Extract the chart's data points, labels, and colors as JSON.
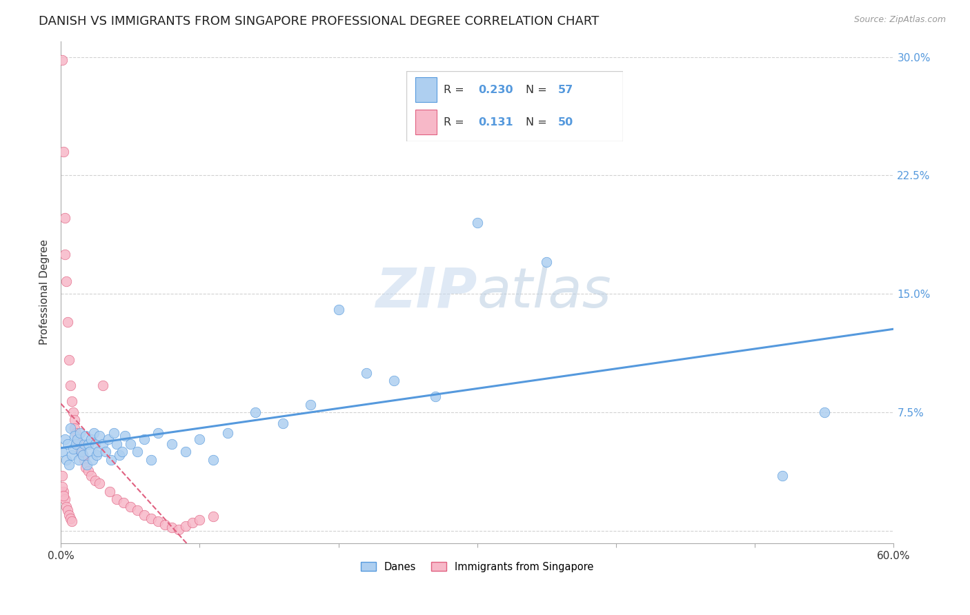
{
  "title": "DANISH VS IMMIGRANTS FROM SINGAPORE PROFESSIONAL DEGREE CORRELATION CHART",
  "source": "Source: ZipAtlas.com",
  "ylabel": "Professional Degree",
  "x_min": 0.0,
  "x_max": 0.6,
  "y_min": -0.008,
  "y_max": 0.31,
  "x_ticks": [
    0.0,
    0.1,
    0.2,
    0.3,
    0.4,
    0.5,
    0.6
  ],
  "x_tick_labels": [
    "0.0%",
    "",
    "",
    "",
    "",
    "",
    "60.0%"
  ],
  "y_ticks": [
    0.0,
    0.075,
    0.15,
    0.225,
    0.3
  ],
  "y_tick_labels_right": [
    "",
    "7.5%",
    "15.0%",
    "22.5%",
    "30.0%"
  ],
  "danes_color": "#aecff0",
  "danes_color_dark": "#5599dd",
  "singapore_color": "#f7b8c8",
  "singapore_color_dark": "#e06080",
  "danes_R": "0.230",
  "danes_N": "57",
  "singapore_R": "0.131",
  "singapore_N": "50",
  "danes_x": [
    0.001,
    0.003,
    0.004,
    0.005,
    0.006,
    0.007,
    0.008,
    0.009,
    0.01,
    0.011,
    0.012,
    0.013,
    0.014,
    0.015,
    0.016,
    0.017,
    0.018,
    0.019,
    0.02,
    0.021,
    0.022,
    0.023,
    0.024,
    0.025,
    0.026,
    0.027,
    0.028,
    0.03,
    0.032,
    0.034,
    0.036,
    0.038,
    0.04,
    0.042,
    0.044,
    0.046,
    0.05,
    0.055,
    0.06,
    0.065,
    0.07,
    0.08,
    0.09,
    0.1,
    0.11,
    0.12,
    0.14,
    0.16,
    0.18,
    0.2,
    0.22,
    0.24,
    0.27,
    0.3,
    0.35,
    0.52,
    0.55
  ],
  "danes_y": [
    0.05,
    0.058,
    0.045,
    0.055,
    0.042,
    0.065,
    0.048,
    0.052,
    0.06,
    0.055,
    0.058,
    0.045,
    0.062,
    0.05,
    0.048,
    0.055,
    0.06,
    0.042,
    0.055,
    0.05,
    0.058,
    0.045,
    0.062,
    0.055,
    0.048,
    0.05,
    0.06,
    0.055,
    0.05,
    0.058,
    0.045,
    0.062,
    0.055,
    0.048,
    0.05,
    0.06,
    0.055,
    0.05,
    0.058,
    0.045,
    0.062,
    0.055,
    0.05,
    0.058,
    0.045,
    0.062,
    0.075,
    0.068,
    0.08,
    0.14,
    0.1,
    0.095,
    0.085,
    0.195,
    0.17,
    0.035,
    0.075
  ],
  "singapore_x": [
    0.001,
    0.001,
    0.002,
    0.002,
    0.003,
    0.003,
    0.003,
    0.004,
    0.004,
    0.005,
    0.005,
    0.006,
    0.006,
    0.007,
    0.007,
    0.008,
    0.008,
    0.009,
    0.01,
    0.01,
    0.011,
    0.012,
    0.013,
    0.014,
    0.015,
    0.016,
    0.017,
    0.018,
    0.02,
    0.022,
    0.025,
    0.028,
    0.03,
    0.035,
    0.04,
    0.045,
    0.05,
    0.055,
    0.06,
    0.065,
    0.07,
    0.075,
    0.08,
    0.085,
    0.09,
    0.095,
    0.1,
    0.11,
    0.001,
    0.002
  ],
  "singapore_y": [
    0.298,
    0.035,
    0.24,
    0.025,
    0.198,
    0.175,
    0.02,
    0.158,
    0.015,
    0.132,
    0.013,
    0.108,
    0.01,
    0.092,
    0.008,
    0.082,
    0.006,
    0.075,
    0.07,
    0.065,
    0.062,
    0.058,
    0.055,
    0.052,
    0.05,
    0.048,
    0.045,
    0.04,
    0.038,
    0.035,
    0.032,
    0.03,
    0.092,
    0.025,
    0.02,
    0.018,
    0.015,
    0.013,
    0.01,
    0.008,
    0.006,
    0.004,
    0.002,
    0.001,
    0.003,
    0.005,
    0.007,
    0.009,
    0.028,
    0.022
  ],
  "watermark_line1": "ZIP",
  "watermark_line2": "atlas",
  "grid_color": "#cccccc",
  "title_fontsize": 13,
  "axis_fontsize": 11,
  "tick_fontsize": 11,
  "label_color_blue": "#5599dd",
  "label_color_N": "#ee6600",
  "label_color_dark": "#333333"
}
